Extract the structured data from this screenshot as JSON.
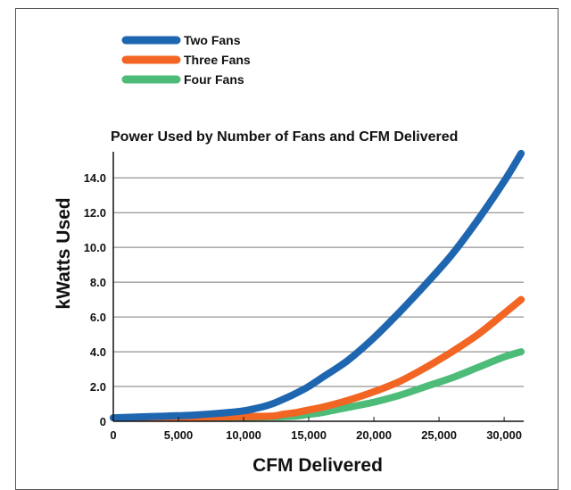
{
  "chart_data": {
    "type": "line",
    "title": "Power Used by Number of Fans and CFM Delivered",
    "xlabel": "CFM Delivered",
    "ylabel": "kWatts Used",
    "xlim": [
      0,
      31500
    ],
    "ylim": [
      0,
      15.5
    ],
    "xticks": [
      0,
      5000,
      10000,
      15000,
      20000,
      25000,
      30000
    ],
    "xtick_labels": [
      "0",
      "5,000",
      "10,000",
      "15,000",
      "20,000",
      "25,000",
      "30,000"
    ],
    "yticks": [
      0,
      2,
      4,
      6,
      8,
      10,
      12,
      14
    ],
    "ytick_labels": [
      "0",
      "2.0",
      "4.0",
      "6.0",
      "8.0",
      "10.0",
      "12.0",
      "14.0"
    ],
    "grid": "horizontal",
    "legend_position": "top-left, above plot",
    "series": [
      {
        "name": "Two Fans",
        "color": "#1f66b0",
        "x": [
          0,
          2000,
          4000,
          6000,
          8000,
          10000,
          11000,
          12000,
          13000,
          14000,
          15000,
          16000,
          18000,
          20000,
          22000,
          24000,
          26000,
          28000,
          30000,
          31300
        ],
        "y": [
          0.2,
          0.25,
          0.3,
          0.35,
          0.45,
          0.6,
          0.75,
          0.95,
          1.25,
          1.6,
          2.0,
          2.5,
          3.5,
          4.8,
          6.3,
          7.9,
          9.6,
          11.6,
          13.8,
          15.4
        ]
      },
      {
        "name": "Three Fans",
        "color": "#f26522",
        "x": [
          0,
          4000,
          8000,
          12000,
          13000,
          14000,
          15000,
          16000,
          18000,
          20000,
          22000,
          24000,
          26000,
          28000,
          30000,
          31300
        ],
        "y": [
          0.2,
          0.2,
          0.25,
          0.3,
          0.4,
          0.5,
          0.65,
          0.8,
          1.2,
          1.7,
          2.3,
          3.1,
          4.0,
          5.0,
          6.2,
          7.0
        ]
      },
      {
        "name": "Four Fans",
        "color": "#4dbc79",
        "x": [
          0,
          4000,
          8000,
          12000,
          14000,
          15000,
          16000,
          18000,
          20000,
          22000,
          24000,
          26000,
          28000,
          30000,
          31300
        ],
        "y": [
          0.2,
          0.2,
          0.2,
          0.25,
          0.3,
          0.4,
          0.5,
          0.8,
          1.1,
          1.5,
          2.0,
          2.5,
          3.1,
          3.7,
          4.0
        ]
      }
    ]
  }
}
